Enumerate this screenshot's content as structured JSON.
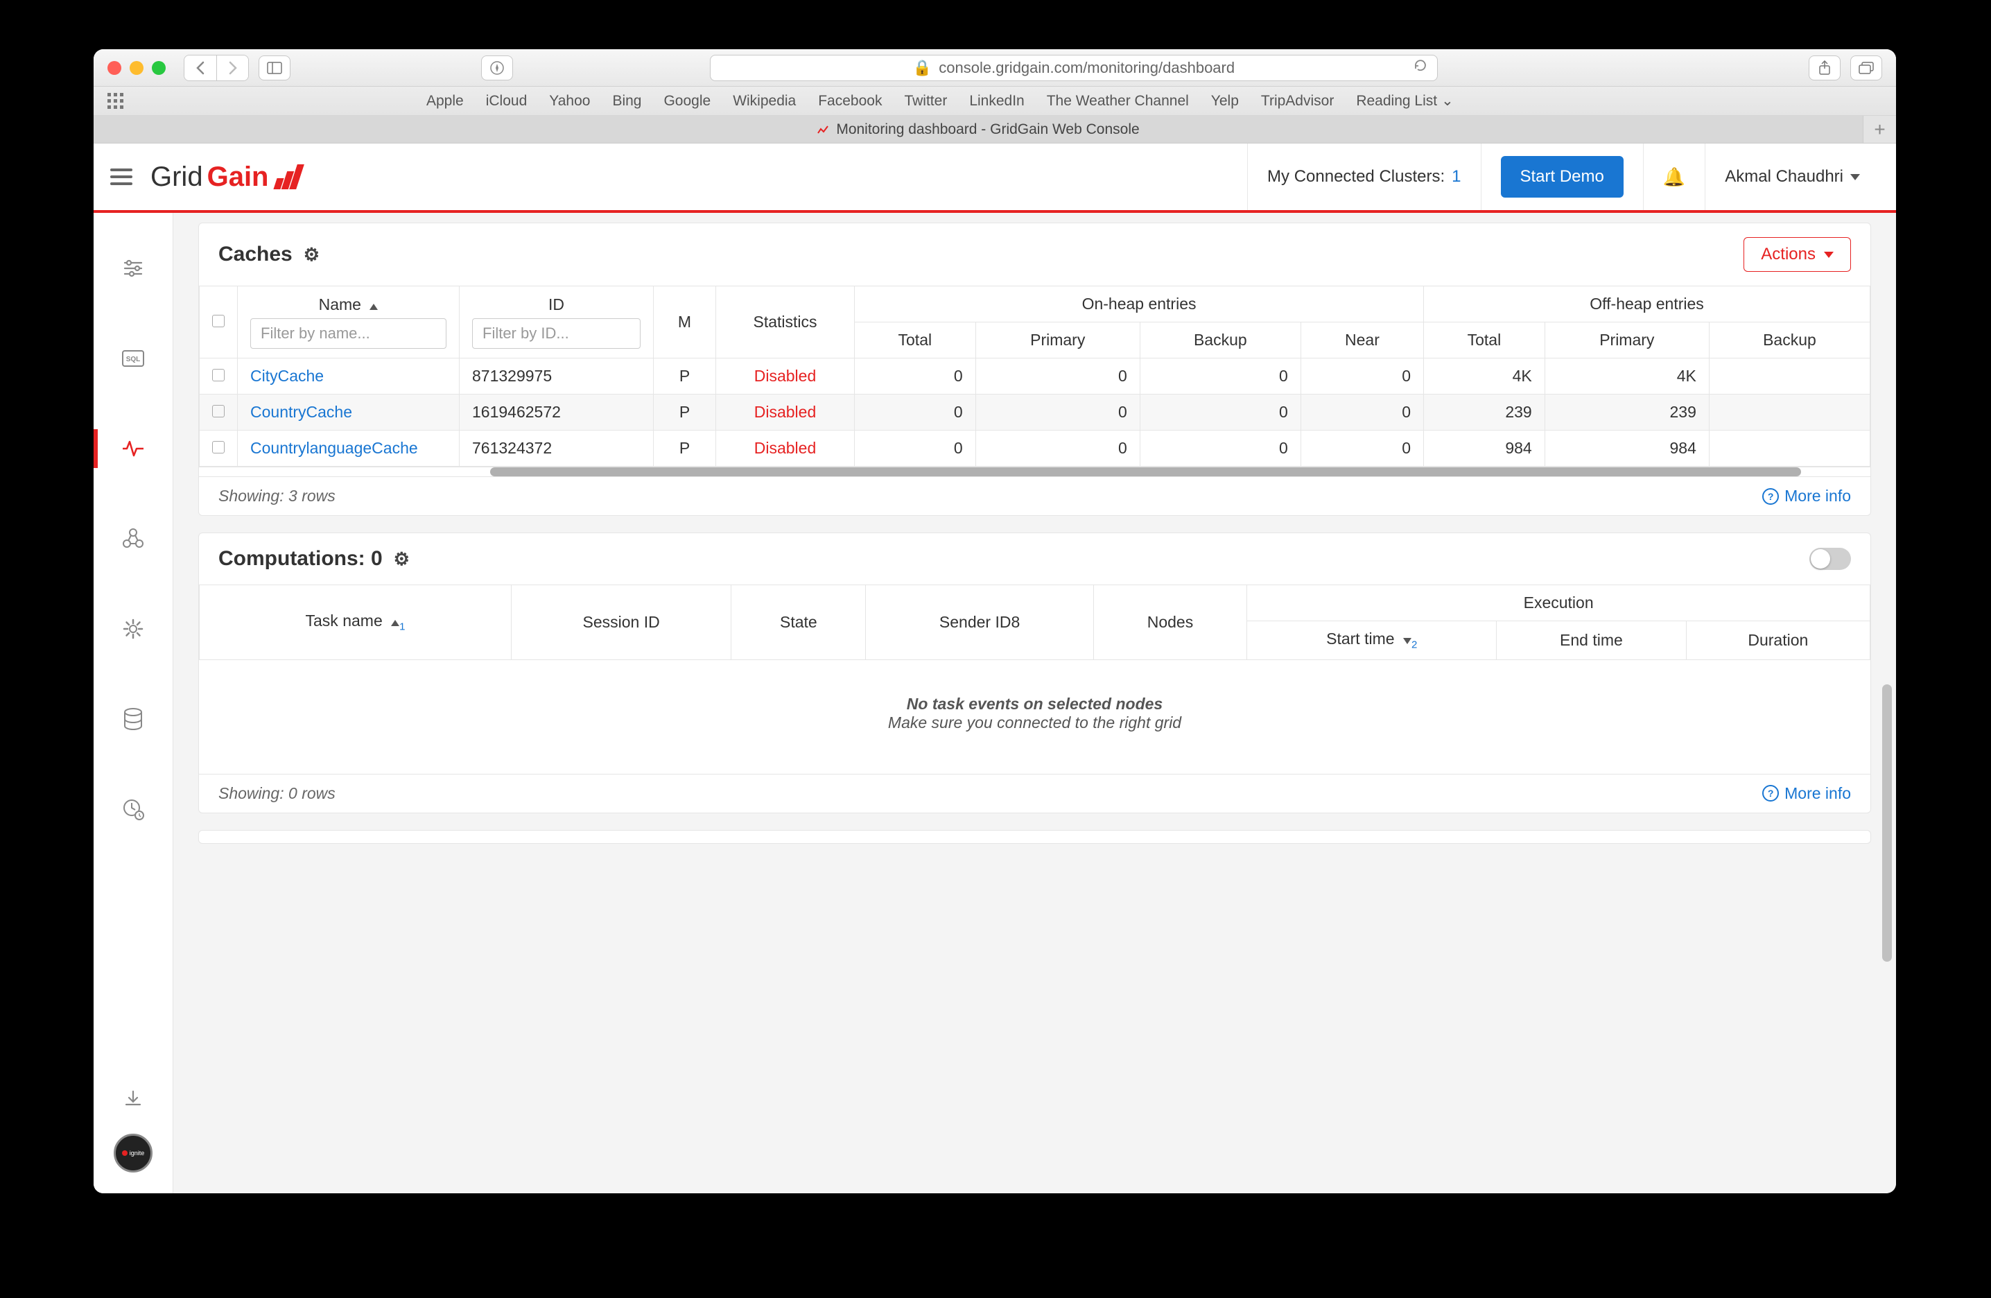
{
  "browser": {
    "url_display": "console.gridgain.com/monitoring/dashboard",
    "tab_title": "Monitoring dashboard - GridGain Web Console",
    "bookmarks": [
      "Apple",
      "iCloud",
      "Yahoo",
      "Bing",
      "Google",
      "Wikipedia",
      "Facebook",
      "Twitter",
      "LinkedIn",
      "The Weather Channel",
      "Yelp",
      "TripAdvisor",
      "Reading List"
    ]
  },
  "header": {
    "logo_part1": "Grid",
    "logo_part2": "Gain",
    "clusters_label": "My Connected Clusters:",
    "clusters_count": "1",
    "start_demo": "Start Demo",
    "user_name": "Akmal Chaudhri"
  },
  "caches_panel": {
    "title": "Caches",
    "actions_label": "Actions",
    "columns": {
      "name": "Name",
      "id": "ID",
      "m": "M",
      "statistics": "Statistics",
      "onheap": "On-heap entries",
      "offheap": "Off-heap entries",
      "total": "Total",
      "primary": "Primary",
      "backup": "Backup",
      "near": "Near"
    },
    "name_placeholder": "Filter by name...",
    "id_placeholder": "Filter by ID...",
    "rows": [
      {
        "name": "CityCache",
        "id": "871329975",
        "m": "P",
        "stats": "Disabled",
        "oh_total": "0",
        "oh_primary": "0",
        "oh_backup": "0",
        "oh_near": "0",
        "off_total": "4K",
        "off_primary": "4K",
        "off_backup": ""
      },
      {
        "name": "CountryCache",
        "id": "1619462572",
        "m": "P",
        "stats": "Disabled",
        "oh_total": "0",
        "oh_primary": "0",
        "oh_backup": "0",
        "oh_near": "0",
        "off_total": "239",
        "off_primary": "239",
        "off_backup": ""
      },
      {
        "name": "CountrylanguageCache",
        "id": "761324372",
        "m": "P",
        "stats": "Disabled",
        "oh_total": "0",
        "oh_primary": "0",
        "oh_backup": "0",
        "oh_near": "0",
        "off_total": "984",
        "off_primary": "984",
        "off_backup": ""
      }
    ],
    "showing": "Showing: 3 rows",
    "more_info": "More info"
  },
  "computations_panel": {
    "title_prefix": "Computations:",
    "count": "0",
    "columns": {
      "task_name": "Task name",
      "session_id": "Session ID",
      "state": "State",
      "sender": "Sender ID8",
      "nodes": "Nodes",
      "execution": "Execution",
      "start_time": "Start time",
      "end_time": "End time",
      "duration": "Duration"
    },
    "sort1_badge": "1",
    "sort2_badge": "2",
    "empty_title": "No task events on selected nodes",
    "empty_sub": "Make sure you connected to the right grid",
    "showing": "Showing: 0 rows",
    "more_info": "More info"
  },
  "colors": {
    "accent": "#e62222",
    "link": "#1976d2",
    "grey_border": "#e5e5e5"
  }
}
